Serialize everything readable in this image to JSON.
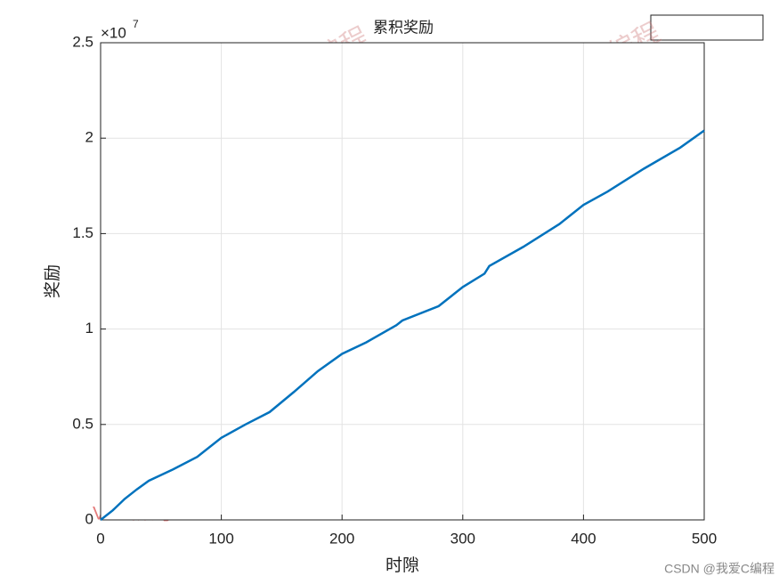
{
  "chart_data": {
    "type": "line",
    "title": "累积奖励",
    "x_label": "时隙",
    "y_label": "奖励",
    "y_multiplier_base": "×10",
    "y_multiplier_exponent": "7",
    "x": [
      0,
      10,
      20,
      30,
      40,
      50,
      60,
      80,
      100,
      120,
      140,
      160,
      180,
      200,
      220,
      245,
      250,
      280,
      300,
      318,
      322,
      350,
      380,
      400,
      420,
      450,
      480,
      500
    ],
    "series": [
      {
        "color": "#0072bd",
        "values": [
          0,
          0.05,
          0.11,
          0.16,
          0.205,
          0.235,
          0.265,
          0.33,
          0.43,
          0.5,
          0.565,
          0.67,
          0.78,
          0.87,
          0.93,
          1.02,
          1.045,
          1.12,
          1.22,
          1.29,
          1.33,
          1.43,
          1.55,
          1.65,
          1.72,
          1.84,
          1.95,
          2.04
        ]
      }
    ],
    "xlim": [
      0,
      500
    ],
    "xticks": [
      0,
      100,
      200,
      300,
      400,
      500
    ],
    "ylim": [
      0,
      2.5
    ],
    "yticks": [
      0,
      0.5,
      1,
      1.5,
      2,
      2.5
    ],
    "grid": true
  },
  "watermarks": {
    "blog": "CSDN博客：我爱C编程",
    "wechat": "VX公众号：matworld",
    "footer": "CSDN @我爱C编程"
  }
}
